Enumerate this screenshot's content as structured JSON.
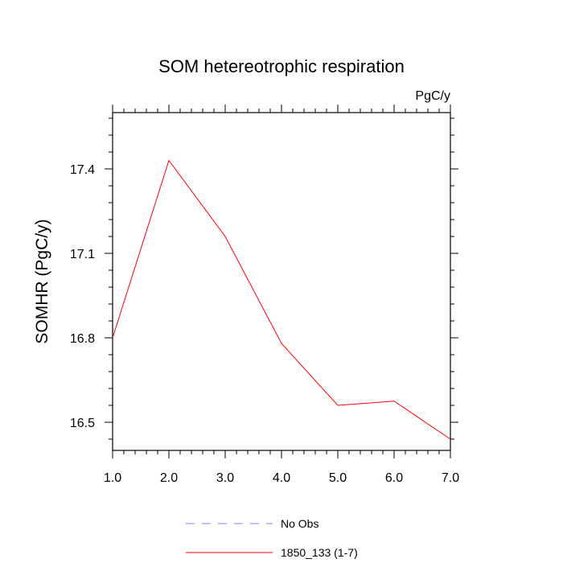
{
  "chart_data": {
    "type": "line",
    "title": "SOM hetereotrophic respiration",
    "units_label": "PgC/y",
    "xlabel": "",
    "ylabel": "SOMHR  (PgC/y)",
    "xlim": [
      1.0,
      7.0
    ],
    "ylim": [
      16.4,
      17.6
    ],
    "x_ticks": [
      1.0,
      2.0,
      3.0,
      4.0,
      5.0,
      6.0,
      7.0
    ],
    "x_tick_labels": [
      "1.0",
      "2.0",
      "3.0",
      "4.0",
      "5.0",
      "6.0",
      "7.0"
    ],
    "y_ticks": [
      16.5,
      16.8,
      17.1,
      17.4
    ],
    "y_tick_labels": [
      "16.5",
      "16.8",
      "17.1",
      "17.4"
    ],
    "y_minor_step": 0.06,
    "x_minor_step": 0.2,
    "grid": false,
    "legend_position": "bottom-center",
    "series": [
      {
        "name": "No Obs",
        "style": "dashed",
        "color": "#8080ff",
        "x": [],
        "values": []
      },
      {
        "name": "1850_133 (1-7)",
        "style": "solid",
        "color": "#ff0000",
        "x": [
          1.0,
          2.0,
          3.0,
          4.0,
          5.0,
          6.0,
          7.0
        ],
        "values": [
          16.8,
          17.43,
          17.16,
          16.78,
          16.56,
          16.575,
          16.44
        ]
      }
    ]
  }
}
